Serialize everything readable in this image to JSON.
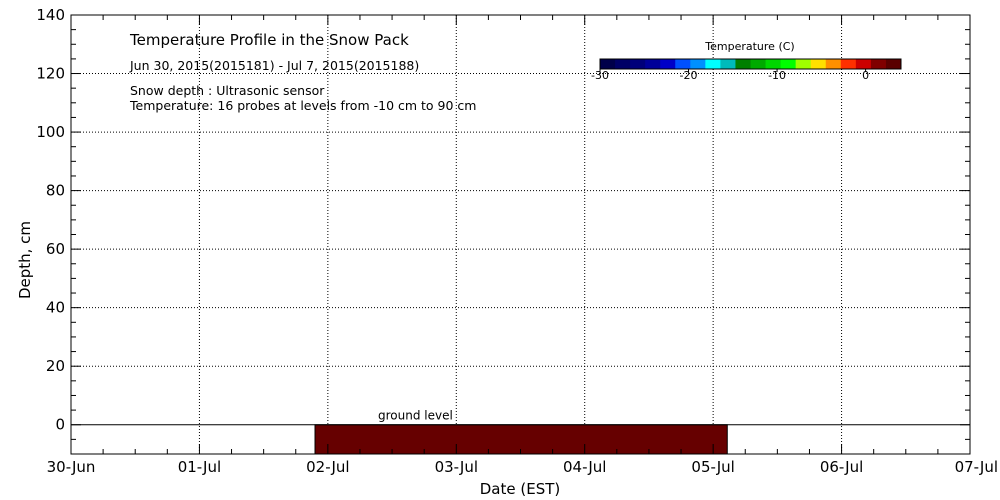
{
  "chart_data": {
    "type": "heatmap",
    "title": "Temperature Profile in the Snow Pack",
    "subtitle": "Jun 30, 2015(2015181) - Jul  7, 2015(2015188)",
    "notes": [
      "Snow depth : Ultrasonic sensor",
      "Temperature: 16 probes at levels from -10 cm to 90 cm"
    ],
    "xlabel": "Date (EST)",
    "ylabel": "Depth, cm",
    "x_ticks": [
      "30-Jun",
      "01-Jul",
      "02-Jul",
      "03-Jul",
      "04-Jul",
      "05-Jul",
      "06-Jul",
      "07-Jul"
    ],
    "y_ticks": [
      0,
      20,
      40,
      60,
      80,
      100,
      120,
      140
    ],
    "xlim_days": [
      0,
      7
    ],
    "ylim": [
      -10,
      140
    ],
    "grid": true,
    "colorbar": {
      "title": "Temperature (C)",
      "tick_labels": [
        "-30",
        "-20",
        "-10",
        "0"
      ],
      "tick_values": [
        -30,
        -20,
        -10,
        0
      ],
      "range": [
        -30,
        4
      ],
      "colors": [
        "#00004a",
        "#000066",
        "#00007a",
        "#000099",
        "#0000c8",
        "#0050ff",
        "#0090ff",
        "#00ffff",
        "#00bbbb",
        "#007f00",
        "#00aa00",
        "#00d700",
        "#00ff00",
        "#a0ff00",
        "#ffe000",
        "#ff9000",
        "#ff3000",
        "#cc0000",
        "#800000",
        "#5a0000"
      ]
    },
    "annotations": [
      {
        "text": "ground level",
        "y": 0
      }
    ],
    "series": [
      {
        "start": "02-Jul",
        "end": "05-Jul",
        "x_start_day": 1.9,
        "x_end_day": 5.11,
        "y_range": [
          -10,
          0
        ],
        "temperature_color": "#660000"
      }
    ]
  }
}
